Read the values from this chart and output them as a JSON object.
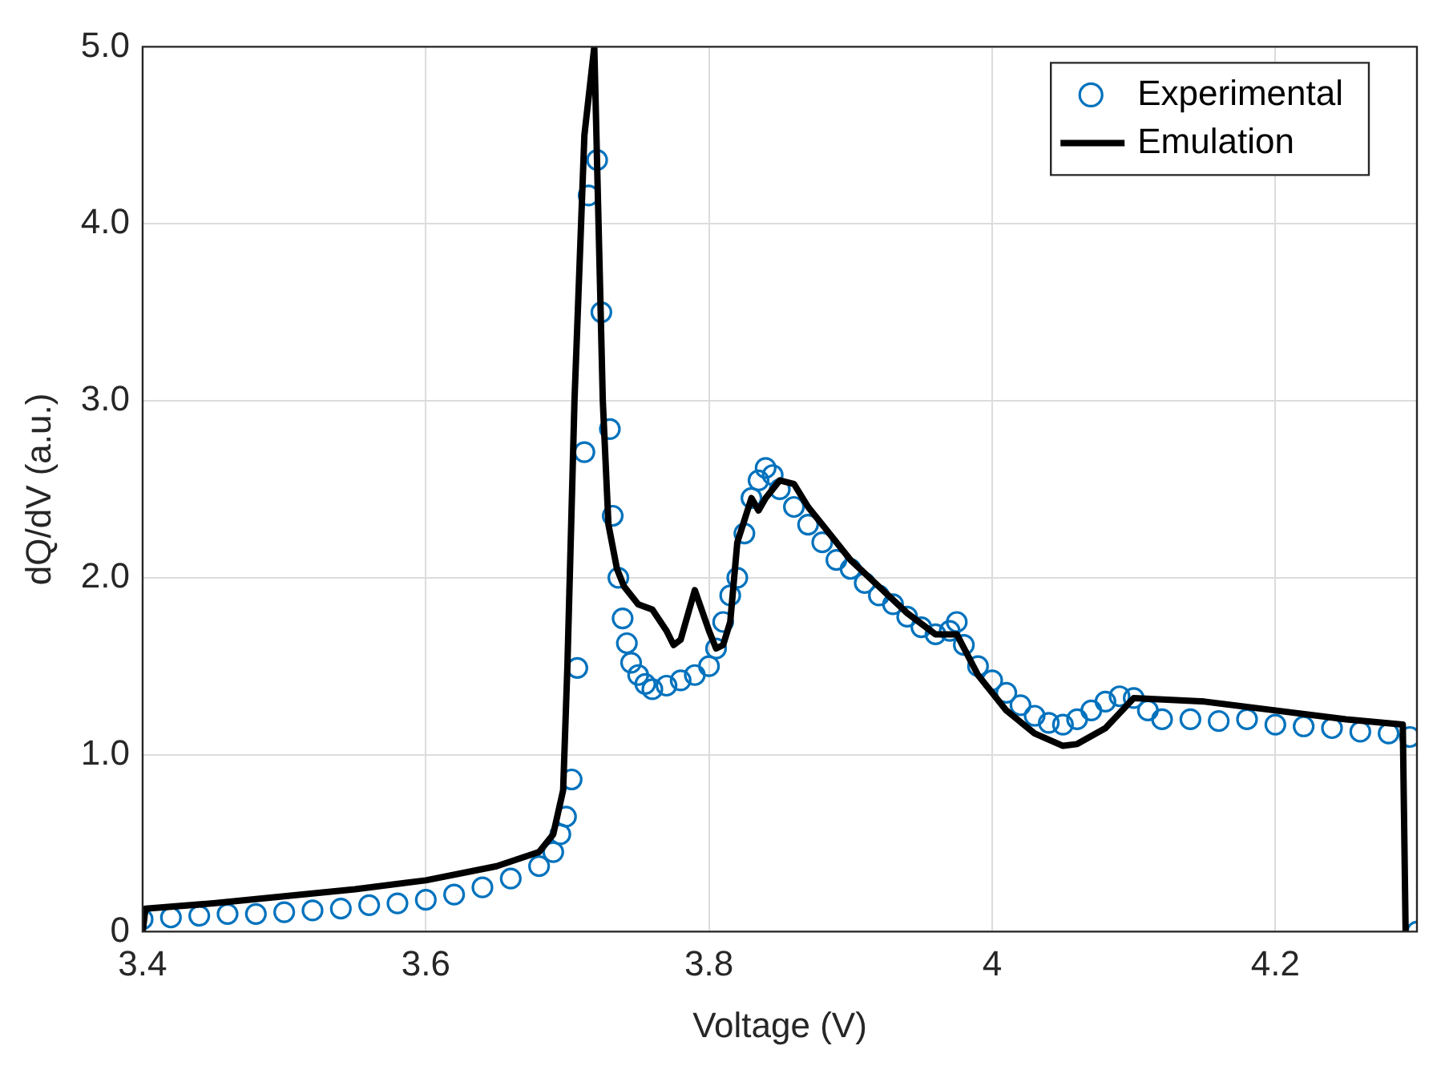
{
  "chart_data": {
    "type": "scatter",
    "xlabel": "Voltage (V)",
    "ylabel": "dQ/dV (a.u.)",
    "xlim": [
      3.4,
      4.3
    ],
    "ylim": [
      0,
      5
    ],
    "xticks": [
      3.4,
      3.6,
      3.8,
      4,
      4.2
    ],
    "yticks": [
      {
        "value": 0,
        "label": "0"
      },
      {
        "value": 1,
        "label": "1.0"
      },
      {
        "value": 2,
        "label": "2.0"
      },
      {
        "value": 3,
        "label": "3.0"
      },
      {
        "value": 4,
        "label": "4.0"
      },
      {
        "value": 5,
        "label": "5.0"
      }
    ],
    "grid": true,
    "legend": "top right",
    "marker": "circle",
    "series": [
      {
        "name": "Experimental",
        "color": "#0072bd",
        "x": [
          3.4,
          3.42,
          3.44,
          3.46,
          3.48,
          3.5,
          3.52,
          3.54,
          3.56,
          3.58,
          3.6,
          3.62,
          3.64,
          3.66,
          3.68,
          3.69,
          3.695,
          3.699,
          3.703,
          3.707,
          3.712,
          3.715,
          3.721,
          3.724,
          3.73,
          3.732,
          3.736,
          3.739,
          3.742,
          3.745,
          3.75,
          3.755,
          3.76,
          3.77,
          3.78,
          3.79,
          3.8,
          3.805,
          3.81,
          3.815,
          3.82,
          3.825,
          3.83,
          3.835,
          3.84,
          3.845,
          3.85,
          3.86,
          3.87,
          3.88,
          3.89,
          3.9,
          3.91,
          3.92,
          3.93,
          3.94,
          3.95,
          3.96,
          3.97,
          3.975,
          3.98,
          3.99,
          4.0,
          4.01,
          4.02,
          4.03,
          4.04,
          4.05,
          4.06,
          4.07,
          4.08,
          4.09,
          4.1,
          4.11,
          4.12,
          4.14,
          4.16,
          4.18,
          4.2,
          4.22,
          4.24,
          4.26,
          4.28,
          4.295,
          4.3
        ],
        "values": [
          0.07,
          0.08,
          0.09,
          0.1,
          0.1,
          0.11,
          0.12,
          0.13,
          0.15,
          0.16,
          0.18,
          0.21,
          0.25,
          0.3,
          0.37,
          0.45,
          0.55,
          0.65,
          0.86,
          1.49,
          2.71,
          4.16,
          4.36,
          3.5,
          2.84,
          2.35,
          2.0,
          1.77,
          1.63,
          1.52,
          1.45,
          1.4,
          1.37,
          1.39,
          1.42,
          1.45,
          1.5,
          1.6,
          1.75,
          1.9,
          2.0,
          2.25,
          2.45,
          2.55,
          2.62,
          2.58,
          2.5,
          2.4,
          2.3,
          2.2,
          2.1,
          2.05,
          1.97,
          1.9,
          1.85,
          1.78,
          1.72,
          1.68,
          1.7,
          1.75,
          1.62,
          1.5,
          1.42,
          1.35,
          1.28,
          1.22,
          1.18,
          1.17,
          1.2,
          1.25,
          1.3,
          1.33,
          1.32,
          1.25,
          1.2,
          1.2,
          1.19,
          1.2,
          1.17,
          1.16,
          1.15,
          1.13,
          1.12,
          1.1,
          0
        ]
      },
      {
        "name": "Emulation",
        "type": "line",
        "color": "#000000",
        "marker": "none",
        "line_style": "solid",
        "x": [
          3.4,
          3.402,
          3.45,
          3.5,
          3.55,
          3.6,
          3.65,
          3.68,
          3.69,
          3.697,
          3.7,
          3.705,
          3.712,
          3.719,
          3.722,
          3.725,
          3.729,
          3.735,
          3.74,
          3.75,
          3.76,
          3.77,
          3.775,
          3.78,
          3.79,
          3.8,
          3.805,
          3.81,
          3.815,
          3.82,
          3.83,
          3.835,
          3.84,
          3.85,
          3.86,
          3.87,
          3.88,
          3.9,
          3.92,
          3.94,
          3.96,
          3.975,
          3.99,
          4.01,
          4.03,
          4.05,
          4.06,
          4.08,
          4.1,
          4.15,
          4.2,
          4.25,
          4.29,
          4.292
        ],
        "values": [
          0,
          0.13,
          0.16,
          0.2,
          0.24,
          0.29,
          0.37,
          0.45,
          0.55,
          0.8,
          1.5,
          3.0,
          4.5,
          5.0,
          4.0,
          3.0,
          2.3,
          2.05,
          1.95,
          1.85,
          1.82,
          1.7,
          1.62,
          1.65,
          1.93,
          1.7,
          1.6,
          1.62,
          1.75,
          2.2,
          2.45,
          2.38,
          2.45,
          2.55,
          2.53,
          2.4,
          2.3,
          2.1,
          1.95,
          1.8,
          1.68,
          1.68,
          1.45,
          1.25,
          1.12,
          1.05,
          1.06,
          1.15,
          1.32,
          1.3,
          1.25,
          1.2,
          1.17,
          0
        ]
      }
    ]
  }
}
